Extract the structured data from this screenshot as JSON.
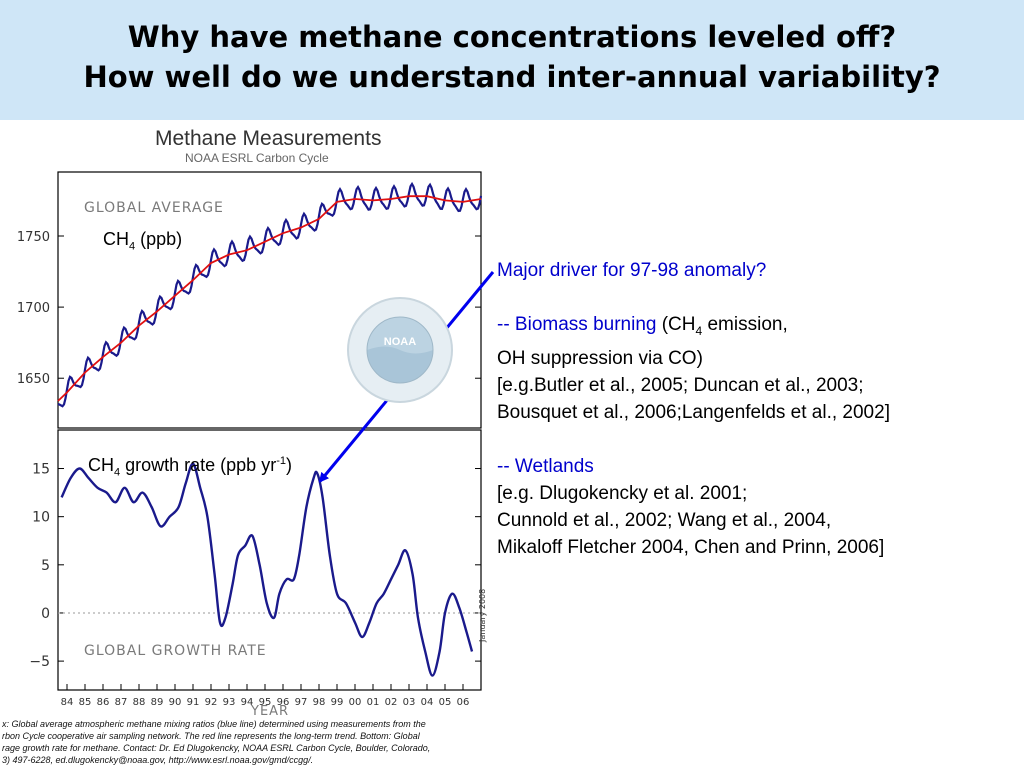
{
  "header": {
    "line1": "Why have methane concentrations leveled off?",
    "line2": "How well do we understand inter-annual variability?"
  },
  "chart": {
    "title": "Methane Measurements",
    "subtitle": "NOAA ESRL Carbon Cycle",
    "top_panel_label": "GLOBAL AVERAGE",
    "bottom_panel_label": "GLOBAL GROWTH RATE",
    "xlabel": "YEAR",
    "date_stamp": "January 2008",
    "logo_text": "NOAA",
    "ch4_label": {
      "base": "CH",
      "sub": "4",
      "rest": " (ppb)"
    },
    "growth_label": {
      "base": "CH",
      "sub": "4",
      "rest": " growth rate (ppb yr",
      "sup": "-1",
      "close": ")"
    },
    "colors": {
      "average": "#1a1a8c",
      "trend": "#e01010",
      "growth": "#1a1a8c",
      "arrow": "#0000ee"
    }
  },
  "chart_data": [
    {
      "type": "line",
      "title": "GLOBAL AVERAGE",
      "ylabel": "CH4 (ppb)",
      "ylim": [
        1615,
        1795
      ],
      "yticks": [
        1650,
        1700,
        1750
      ],
      "xlim": [
        1983.5,
        2007.0
      ],
      "series": [
        {
          "name": "monthly",
          "x": [
            1983.5,
            1984.0,
            1985.0,
            1986.0,
            1987.0,
            1988.0,
            1989.0,
            1990.0,
            1991.0,
            1992.0,
            1993.0,
            1994.0,
            1995.0,
            1996.0,
            1997.0,
            1998.0,
            1999.0,
            2000.0,
            2001.0,
            2002.0,
            2003.0,
            2004.0,
            2005.0,
            2006.0,
            2007.0
          ],
          "y": [
            1634,
            1640,
            1654,
            1665,
            1675,
            1687,
            1697,
            1708,
            1719,
            1731,
            1737,
            1740,
            1746,
            1752,
            1756,
            1762,
            1774,
            1776,
            1775,
            1776,
            1778,
            1778,
            1775,
            1774,
            1776
          ]
        },
        {
          "name": "trend",
          "x": [
            1983.5,
            1984.0,
            1985.0,
            1986.0,
            1987.0,
            1988.0,
            1989.0,
            1990.0,
            1991.0,
            1992.0,
            1993.0,
            1994.0,
            1995.0,
            1996.0,
            1997.0,
            1998.0,
            1999.0,
            2000.0,
            2001.0,
            2002.0,
            2003.0,
            2004.0,
            2005.0,
            2006.0,
            2007.0
          ],
          "y": [
            1634,
            1640,
            1654,
            1665,
            1675,
            1687,
            1697,
            1708,
            1719,
            1731,
            1737,
            1740,
            1746,
            1752,
            1756,
            1762,
            1774,
            1776,
            1775,
            1776,
            1778,
            1778,
            1775,
            1774,
            1776
          ]
        }
      ]
    },
    {
      "type": "line",
      "title": "GLOBAL GROWTH RATE",
      "xlabel": "YEAR",
      "ylim": [
        -8,
        19
      ],
      "yticks": [
        -5,
        0,
        5,
        10,
        15
      ],
      "xlim": [
        1983.5,
        2007.0
      ],
      "xticks": [
        "84",
        "85",
        "86",
        "87",
        "88",
        "89",
        "90",
        "91",
        "92",
        "93",
        "94",
        "95",
        "96",
        "97",
        "98",
        "99",
        "00",
        "01",
        "02",
        "03",
        "04",
        "05",
        "06"
      ],
      "series": [
        {
          "name": "growth rate",
          "x": [
            1983.7,
            1984.2,
            1984.7,
            1985.2,
            1985.7,
            1986.2,
            1986.7,
            1987.2,
            1987.7,
            1988.2,
            1988.7,
            1989.2,
            1989.7,
            1990.2,
            1990.6,
            1991.0,
            1991.4,
            1991.8,
            1992.2,
            1992.5,
            1992.8,
            1993.2,
            1993.5,
            1993.9,
            1994.3,
            1994.7,
            1995.1,
            1995.5,
            1995.8,
            1996.2,
            1996.6,
            1996.9,
            1997.3,
            1997.7,
            1997.9,
            1998.2,
            1998.6,
            1999.0,
            1999.5,
            2000.0,
            2000.4,
            2000.8,
            2001.2,
            2001.6,
            2002.0,
            2002.4,
            2002.8,
            2003.2,
            2003.5,
            2003.9,
            2004.3,
            2004.7,
            2005.0,
            2005.4,
            2005.8,
            2006.2,
            2006.5
          ],
          "y": [
            12,
            14,
            15,
            14,
            13,
            12.5,
            11.5,
            13,
            11.5,
            12.5,
            11,
            9,
            10,
            11,
            13.5,
            15.5,
            13,
            10,
            4,
            -1,
            -0.5,
            3,
            6,
            7,
            8,
            5,
            1,
            -0.5,
            2,
            3.5,
            3.5,
            6,
            11,
            14,
            14.5,
            12,
            6,
            2,
            1,
            -1,
            -2.5,
            -1,
            1,
            2,
            3.5,
            5,
            6.5,
            4,
            -0.5,
            -4,
            -6.5,
            -4,
            0,
            2,
            0.5,
            -2,
            -4
          ]
        }
      ]
    }
  ],
  "right_panel": {
    "q": "Major driver for 97-98 anomaly?",
    "bb_label": "-- Biomass burning",
    "bb_paren": " (CH",
    "bb_sub": "4",
    "bb_rest": " emission,",
    "oh": "OH suppression via CO)",
    "ref1": "[e.g.Butler et al., 2005; Duncan et al., 2003;",
    "ref2": "Bousquet et al., 2006;Langenfelds et al., 2002]",
    "wet": "-- Wetlands",
    "ref3": "[e.g. Dlugokencky et al. 2001;",
    "ref4": "Cunnold et al., 2002; Wang et al., 2004,",
    "ref5": "Mikaloff Fletcher 2004, Chen and Prinn, 2006]"
  },
  "caption": {
    "l1": "x:  Global average atmospheric methane mixing ratios (blue line) determined using measurements from the",
    "l2": "rbon Cycle cooperative air sampling network.  The red line represents the long-term trend.  Bottom:  Global",
    "l3": "rage growth rate for methane.  Contact:  Dr. Ed Dlugokencky, NOAA ESRL Carbon Cycle, Boulder, Colorado,",
    "l4": "3) 497-6228, ed.dlugokencky@noaa.gov, http://www.esrl.noaa.gov/gmd/ccgg/."
  }
}
